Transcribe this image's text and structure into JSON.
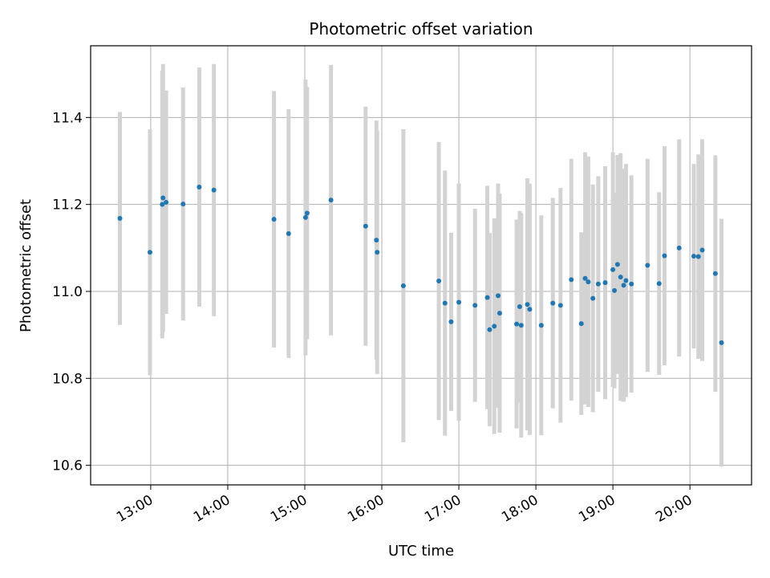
{
  "chart_data": {
    "type": "scatter",
    "title": "Photometric offset variation",
    "xlabel": "UTC time",
    "ylabel": "Photometric offset",
    "x_unit": "UTC hour of day",
    "xlim": [
      12.22,
      20.8
    ],
    "ylim": [
      10.555,
      11.565
    ],
    "x_ticks": [
      {
        "value": 13,
        "label": "13:00"
      },
      {
        "value": 14,
        "label": "14:00"
      },
      {
        "value": 15,
        "label": "15:00"
      },
      {
        "value": 16,
        "label": "16:00"
      },
      {
        "value": 17,
        "label": "17:00"
      },
      {
        "value": 18,
        "label": "18:00"
      },
      {
        "value": 19,
        "label": "19:00"
      },
      {
        "value": 20,
        "label": "20:00"
      }
    ],
    "y_ticks": [
      {
        "value": 10.6,
        "label": "10.6"
      },
      {
        "value": 10.8,
        "label": "10.8"
      },
      {
        "value": 11.0,
        "label": "11.0"
      },
      {
        "value": 11.2,
        "label": "11.2"
      },
      {
        "value": 11.4,
        "label": "11.4"
      }
    ],
    "grid": true,
    "colors": {
      "point": "#1f77b4",
      "errorbar": "#d3d3d3",
      "grid": "#b0b0b0"
    },
    "series": [
      {
        "points": [
          [
            12.6,
            11.168,
            0.245
          ],
          [
            12.99,
            11.09,
            0.283
          ],
          [
            13.15,
            11.2,
            0.308
          ],
          [
            13.16,
            11.215,
            0.308
          ],
          [
            13.2,
            11.205,
            0.257
          ],
          [
            13.42,
            11.201,
            0.268
          ],
          [
            13.63,
            11.24,
            0.275
          ],
          [
            13.82,
            11.233,
            0.29
          ],
          [
            14.6,
            11.166,
            0.295
          ],
          [
            14.79,
            11.133,
            0.286
          ],
          [
            15.01,
            11.17,
            0.317
          ],
          [
            15.03,
            11.18,
            0.29
          ],
          [
            15.34,
            11.21,
            0.311
          ],
          [
            15.79,
            11.15,
            0.275
          ],
          [
            15.93,
            11.118,
            0.275
          ],
          [
            15.94,
            11.09,
            0.28
          ],
          [
            16.28,
            11.013,
            0.36
          ],
          [
            16.74,
            11.024,
            0.32
          ],
          [
            16.82,
            10.973,
            0.305
          ],
          [
            16.9,
            10.93,
            0.205
          ],
          [
            17.0,
            10.975,
            0.273
          ],
          [
            17.21,
            10.968,
            0.222
          ],
          [
            17.37,
            10.986,
            0.257
          ],
          [
            17.4,
            10.912,
            0.222
          ],
          [
            17.46,
            10.92,
            0.248
          ],
          [
            17.51,
            10.99,
            0.258
          ],
          [
            17.53,
            10.95,
            0.275
          ],
          [
            17.75,
            10.925,
            0.24
          ],
          [
            17.79,
            10.965,
            0.22
          ],
          [
            17.81,
            10.922,
            0.258
          ],
          [
            17.89,
            10.97,
            0.29
          ],
          [
            17.92,
            10.959,
            0.289
          ],
          [
            18.07,
            10.922,
            0.253
          ],
          [
            18.22,
            10.973,
            0.242
          ],
          [
            18.32,
            10.968,
            0.27
          ],
          [
            18.46,
            11.027,
            0.278
          ],
          [
            18.59,
            10.926,
            0.21
          ],
          [
            18.64,
            11.03,
            0.29
          ],
          [
            18.68,
            11.022,
            0.288
          ],
          [
            18.74,
            10.984,
            0.262
          ],
          [
            18.81,
            11.017,
            0.248
          ],
          [
            18.9,
            11.02,
            0.268
          ],
          [
            19.0,
            11.05,
            0.27
          ],
          [
            19.02,
            11.002,
            0.225
          ],
          [
            19.06,
            11.062,
            0.252
          ],
          [
            19.1,
            11.033,
            0.285
          ],
          [
            19.14,
            11.014,
            0.268
          ],
          [
            19.17,
            11.025,
            0.268
          ],
          [
            19.24,
            11.017,
            0.25
          ],
          [
            19.45,
            11.06,
            0.245
          ],
          [
            19.6,
            11.018,
            0.21
          ],
          [
            19.67,
            11.082,
            0.252
          ],
          [
            19.86,
            11.1,
            0.25
          ],
          [
            20.05,
            11.081,
            0.212
          ],
          [
            20.11,
            11.08,
            0.235
          ],
          [
            20.16,
            11.095,
            0.255
          ],
          [
            20.33,
            11.041,
            0.272
          ],
          [
            20.41,
            10.882,
            0.285
          ]
        ]
      }
    ]
  }
}
